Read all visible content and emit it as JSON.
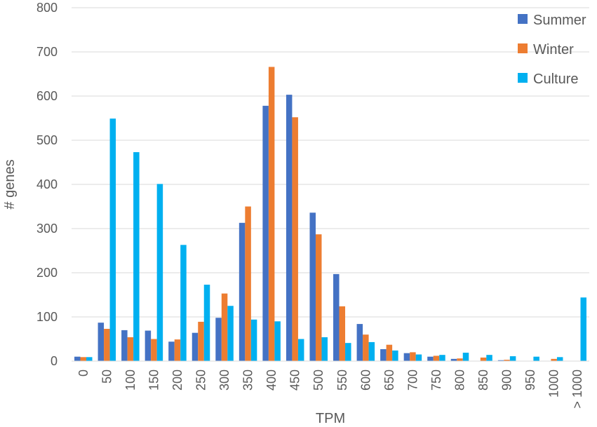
{
  "chart_data": {
    "type": "bar",
    "title": "",
    "xlabel": "TPM",
    "ylabel": "# genes",
    "ylim": [
      0,
      800
    ],
    "yticks": [
      0,
      100,
      200,
      300,
      400,
      500,
      600,
      700,
      800
    ],
    "grid": true,
    "legend_position": "top-right",
    "categories": [
      "0",
      "50",
      "100",
      "150",
      "200",
      "250",
      "300",
      "350",
      "400",
      "450",
      "500",
      "550",
      "600",
      "650",
      "700",
      "750",
      "800",
      "850",
      "900",
      "950",
      "1000",
      "> 1000"
    ],
    "series": [
      {
        "name": "Summer",
        "color": "#4472C4",
        "values": [
          10,
          87,
          70,
          69,
          44,
          64,
          98,
          313,
          578,
          603,
          336,
          197,
          84,
          27,
          18,
          10,
          5,
          0,
          2,
          0,
          0,
          0
        ]
      },
      {
        "name": "Winter",
        "color": "#ED7D31",
        "values": [
          9,
          73,
          54,
          50,
          49,
          89,
          153,
          350,
          666,
          552,
          287,
          124,
          60,
          37,
          20,
          12,
          6,
          8,
          3,
          0,
          5,
          0
        ]
      },
      {
        "name": "Culture",
        "color": "#00B0F0",
        "values": [
          9,
          549,
          473,
          401,
          263,
          173,
          125,
          94,
          90,
          50,
          54,
          41,
          43,
          24,
          15,
          14,
          19,
          14,
          11,
          10,
          9,
          144
        ]
      }
    ]
  }
}
